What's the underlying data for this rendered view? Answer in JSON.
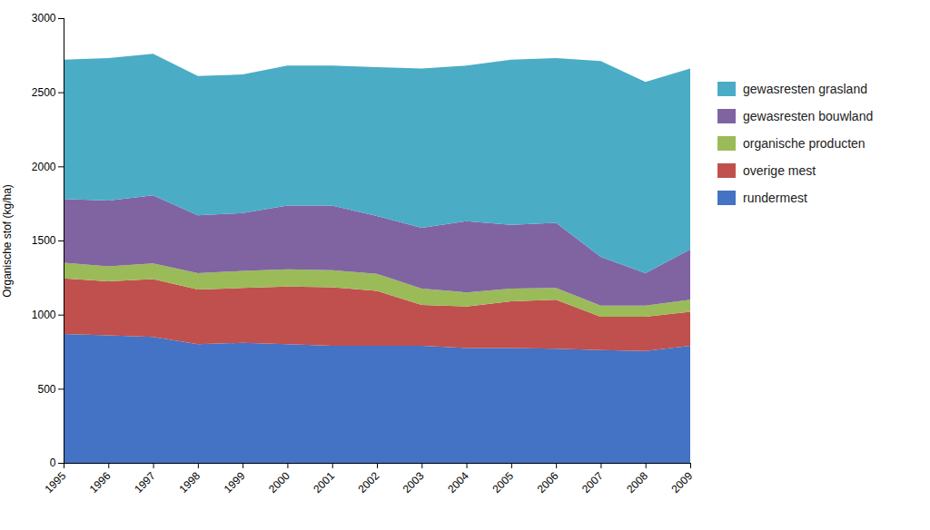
{
  "chart_data": {
    "type": "area",
    "stacked": true,
    "x": [
      1995,
      1996,
      1997,
      1998,
      1999,
      2000,
      2001,
      2002,
      2003,
      2004,
      2005,
      2006,
      2007,
      2008,
      2009
    ],
    "series": [
      {
        "name": "rundermest",
        "color": "#4472C4",
        "values": [
          870,
          860,
          850,
          800,
          810,
          800,
          790,
          790,
          790,
          775,
          775,
          770,
          760,
          755,
          790
        ]
      },
      {
        "name": "overige mest",
        "color": "#C0504D",
        "values": [
          375,
          365,
          390,
          370,
          370,
          390,
          395,
          370,
          275,
          280,
          315,
          330,
          225,
          230,
          230
        ]
      },
      {
        "name": "organische producten",
        "color": "#9BBB59",
        "values": [
          105,
          100,
          105,
          110,
          115,
          115,
          115,
          115,
          110,
          95,
          85,
          80,
          75,
          75,
          80
        ]
      },
      {
        "name": "gewasresten bouwland",
        "color": "#8064A2",
        "values": [
          430,
          445,
          460,
          390,
          390,
          430,
          435,
          390,
          410,
          480,
          430,
          440,
          330,
          220,
          340
        ]
      },
      {
        "name": "gewasresten grasland",
        "color": "#4BACC6",
        "values": [
          940,
          960,
          955,
          940,
          935,
          945,
          945,
          1005,
          1075,
          1050,
          1115,
          1110,
          1320,
          1290,
          1220
        ]
      }
    ],
    "ylabel": "Organische stof (kg/ha)",
    "xlim": [
      1995,
      2009
    ],
    "xticks": [
      1995,
      1996,
      1997,
      1998,
      1999,
      2000,
      2001,
      2002,
      2003,
      2004,
      2005,
      2006,
      2007,
      2008,
      2009
    ],
    "ylim": [
      0,
      3000
    ],
    "yticks": [
      0,
      500,
      1000,
      1500,
      2000,
      2500,
      3000
    ],
    "grid": false,
    "legend": "right"
  }
}
